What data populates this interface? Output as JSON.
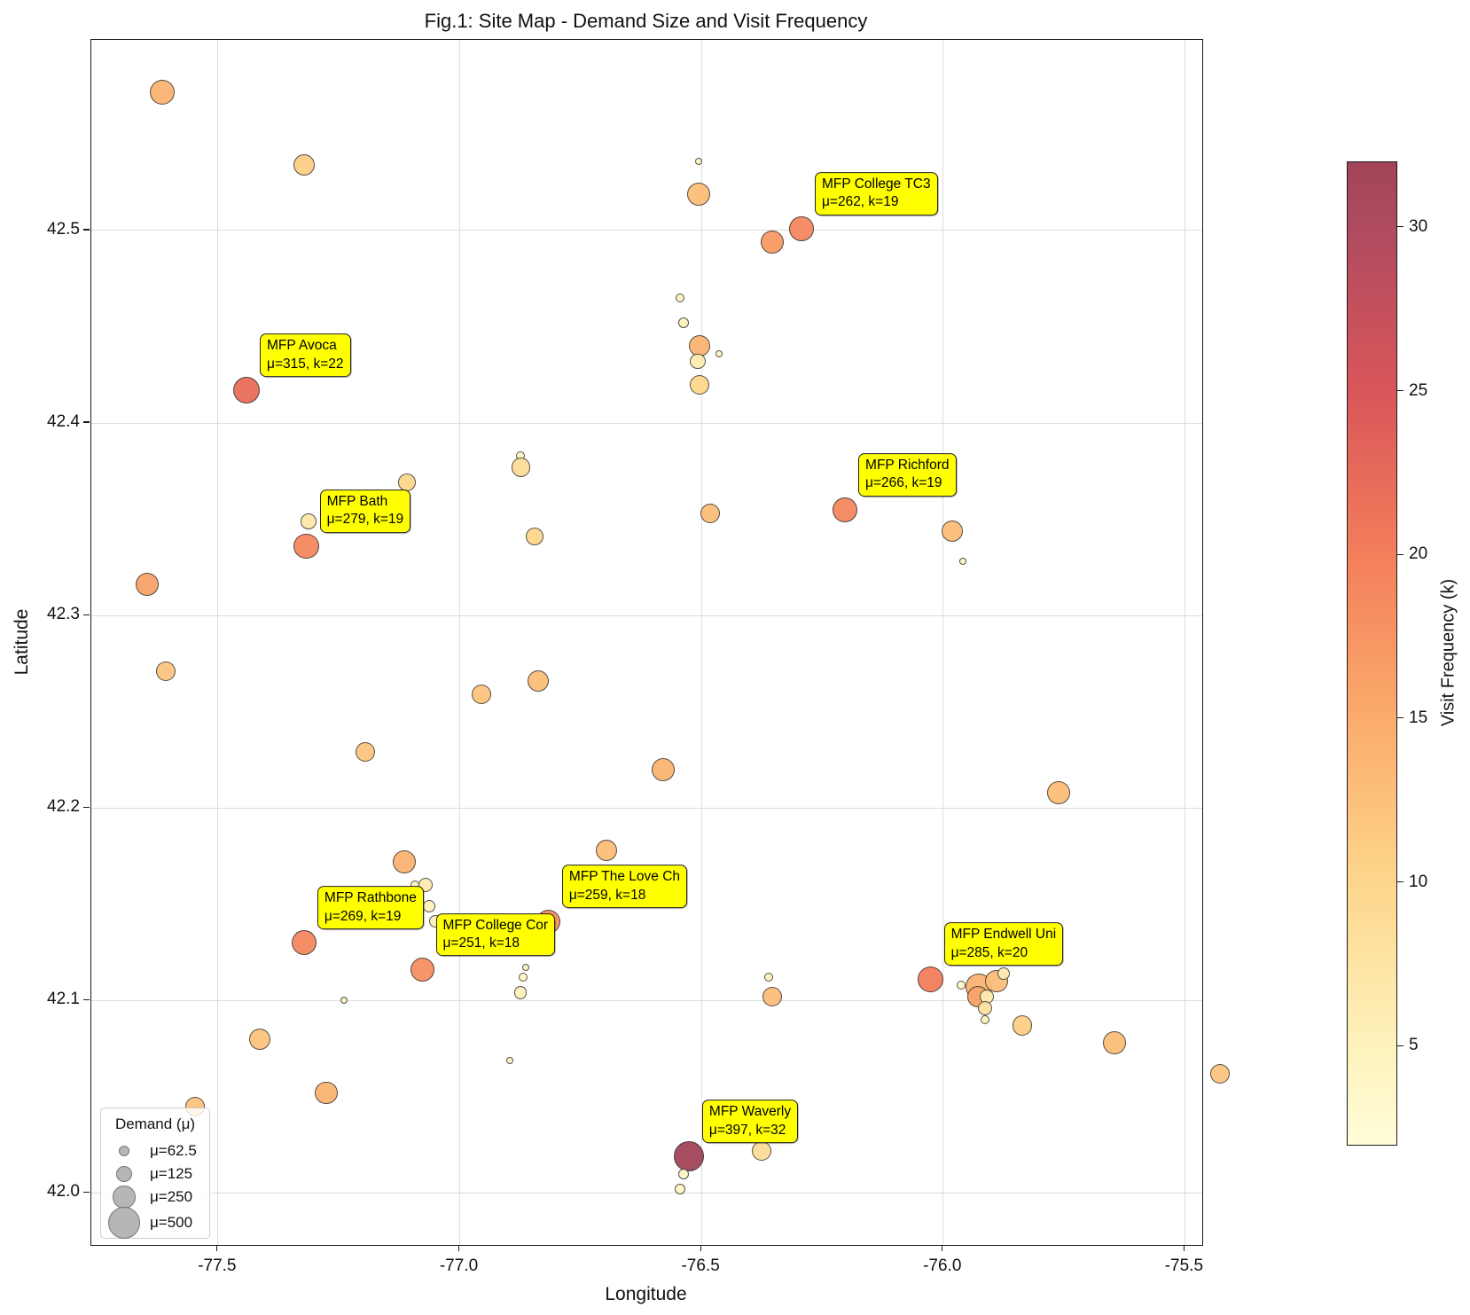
{
  "title": "Fig.1: Site Map - Demand Size and Visit Frequency",
  "axes": {
    "xlabel": "Longitude",
    "ylabel": "Latitude",
    "xlim": [
      -77.762,
      -75.464
    ],
    "ylim": [
      41.973,
      42.599
    ],
    "x_ticks": [
      {
        "value": -77.5,
        "label": "-77.5"
      },
      {
        "value": -77.0,
        "label": "-77.0"
      },
      {
        "value": -76.5,
        "label": "-76.5"
      },
      {
        "value": -76.0,
        "label": "-76.0"
      },
      {
        "value": -75.5,
        "label": "-75.5"
      }
    ],
    "y_ticks": [
      {
        "value": 42.0,
        "label": "42.0"
      },
      {
        "value": 42.1,
        "label": "42.1"
      },
      {
        "value": 42.2,
        "label": "42.2"
      },
      {
        "value": 42.3,
        "label": "42.3"
      },
      {
        "value": 42.4,
        "label": "42.4"
      },
      {
        "value": 42.5,
        "label": "42.5"
      }
    ],
    "grid": true
  },
  "colorbar": {
    "label": "Visit Frequency (k)",
    "vmin": 2,
    "vmax": 32,
    "ticks": [
      {
        "value": 5,
        "label": "5"
      },
      {
        "value": 10,
        "label": "10"
      },
      {
        "value": 15,
        "label": "15"
      },
      {
        "value": 20,
        "label": "20"
      },
      {
        "value": 25,
        "label": "25"
      },
      {
        "value": 30,
        "label": "30"
      }
    ],
    "gradient_stops": [
      {
        "k": 32,
        "color": "#A24459"
      },
      {
        "k": 30,
        "color": "#AF4B60"
      },
      {
        "k": 25,
        "color": "#D95659"
      },
      {
        "k": 20,
        "color": "#F37E5B"
      },
      {
        "k": 15,
        "color": "#FBAC6C"
      },
      {
        "k": 10,
        "color": "#FDD68C"
      },
      {
        "k": 5,
        "color": "#FEF2BC"
      },
      {
        "k": 2,
        "color": "#FFFDD8"
      }
    ]
  },
  "size_legend": {
    "title": "Demand (μ)",
    "entries": [
      {
        "label": "μ=62.5",
        "mu": 62.5
      },
      {
        "label": "μ=125",
        "mu": 125
      },
      {
        "label": "μ=250",
        "mu": 250
      },
      {
        "label": "μ=500",
        "mu": 500
      }
    ]
  },
  "chart_data": {
    "type": "scatter",
    "x_field": "lon",
    "y_field": "lat",
    "size_encoding": "demand mu",
    "color_encoding": "visit frequency k",
    "points": [
      {
        "lon": -77.616,
        "lat": 42.572,
        "mu": 270,
        "k": 14
      },
      {
        "lon": -77.322,
        "lat": 42.534,
        "mu": 200,
        "k": 11
      },
      {
        "lon": -76.505,
        "lat": 42.536,
        "mu": 22,
        "k": 4
      },
      {
        "lon": -76.506,
        "lat": 42.519,
        "mu": 230,
        "k": 13
      },
      {
        "lon": -76.354,
        "lat": 42.494,
        "mu": 230,
        "k": 17
      },
      {
        "lon": -76.293,
        "lat": 42.501,
        "mu": 262,
        "k": 19,
        "annotation": {
          "line1": "MFP College TC3",
          "line2": "μ=262, k=19"
        }
      },
      {
        "lon": -76.544,
        "lat": 42.465,
        "mu": 35,
        "k": 5
      },
      {
        "lon": -76.537,
        "lat": 42.452,
        "mu": 50,
        "k": 5
      },
      {
        "lon": -76.503,
        "lat": 42.44,
        "mu": 200,
        "k": 14
      },
      {
        "lon": -76.463,
        "lat": 42.436,
        "mu": 22,
        "k": 4
      },
      {
        "lon": -76.507,
        "lat": 42.432,
        "mu": 110,
        "k": 6
      },
      {
        "lon": -76.504,
        "lat": 42.42,
        "mu": 170,
        "k": 10
      },
      {
        "lon": -77.441,
        "lat": 42.417,
        "mu": 315,
        "k": 22,
        "annotation": {
          "line1": "MFP Avoca",
          "line2": "μ=315, k=22"
        }
      },
      {
        "lon": -76.875,
        "lat": 42.383,
        "mu": 35,
        "k": 4
      },
      {
        "lon": -76.873,
        "lat": 42.377,
        "mu": 160,
        "k": 9
      },
      {
        "lon": -77.109,
        "lat": 42.369,
        "mu": 140,
        "k": 10
      },
      {
        "lon": -77.313,
        "lat": 42.349,
        "mu": 110,
        "k": 7
      },
      {
        "lon": -77.317,
        "lat": 42.336,
        "mu": 279,
        "k": 19,
        "annotation": {
          "line1": "MFP Bath",
          "line2": "μ=279, k=19"
        }
      },
      {
        "lon": -76.482,
        "lat": 42.353,
        "mu": 170,
        "k": 13
      },
      {
        "lon": -76.203,
        "lat": 42.355,
        "mu": 266,
        "k": 19,
        "annotation": {
          "line1": "MFP Richford",
          "line2": "μ=266, k=19"
        }
      },
      {
        "lon": -75.982,
        "lat": 42.344,
        "mu": 200,
        "k": 13
      },
      {
        "lon": -75.96,
        "lat": 42.328,
        "mu": 22,
        "k": 4
      },
      {
        "lon": -77.647,
        "lat": 42.316,
        "mu": 230,
        "k": 16
      },
      {
        "lon": -76.845,
        "lat": 42.341,
        "mu": 140,
        "k": 10
      },
      {
        "lon": -77.608,
        "lat": 42.271,
        "mu": 170,
        "k": 12
      },
      {
        "lon": -76.838,
        "lat": 42.266,
        "mu": 200,
        "k": 13
      },
      {
        "lon": -76.955,
        "lat": 42.259,
        "mu": 170,
        "k": 12
      },
      {
        "lon": -77.196,
        "lat": 42.229,
        "mu": 170,
        "k": 12
      },
      {
        "lon": -76.579,
        "lat": 42.22,
        "mu": 230,
        "k": 14
      },
      {
        "lon": -76.697,
        "lat": 42.178,
        "mu": 200,
        "k": 13
      },
      {
        "lon": -77.115,
        "lat": 42.172,
        "mu": 230,
        "k": 14
      },
      {
        "lon": -77.093,
        "lat": 42.16,
        "mu": 35,
        "k": 4
      },
      {
        "lon": -77.071,
        "lat": 42.16,
        "mu": 90,
        "k": 6
      },
      {
        "lon": -77.063,
        "lat": 42.149,
        "mu": 70,
        "k": 5
      },
      {
        "lon": -77.051,
        "lat": 42.141,
        "mu": 70,
        "k": 5
      },
      {
        "lon": -76.816,
        "lat": 42.141,
        "mu": 259,
        "k": 18,
        "annotation": {
          "line1": "MFP The Love Ch",
          "line2": "μ=259, k=18"
        }
      },
      {
        "lon": -77.322,
        "lat": 42.13,
        "mu": 269,
        "k": 19,
        "annotation": {
          "line1": "MFP Rathbone",
          "line2": "μ=269, k=19"
        }
      },
      {
        "lon": -77.077,
        "lat": 42.116,
        "mu": 251,
        "k": 18,
        "annotation": {
          "line1": "MFP College Cor",
          "line2": "μ=251, k=18"
        }
      },
      {
        "lon": -77.24,
        "lat": 42.1,
        "mu": 22,
        "k": 5
      },
      {
        "lon": -76.361,
        "lat": 42.112,
        "mu": 35,
        "k": 5
      },
      {
        "lon": -76.354,
        "lat": 42.102,
        "mu": 170,
        "k": 13
      },
      {
        "lon": -76.026,
        "lat": 42.111,
        "mu": 285,
        "k": 20,
        "annotation": {
          "line1": "MFP Endwell Uni",
          "line2": "μ=285, k=20"
        }
      },
      {
        "lon": -75.963,
        "lat": 42.108,
        "mu": 35,
        "k": 4
      },
      {
        "lon": -75.926,
        "lat": 42.107,
        "mu": 300,
        "k": 14
      },
      {
        "lon": -75.928,
        "lat": 42.102,
        "mu": 200,
        "k": 16
      },
      {
        "lon": -75.89,
        "lat": 42.11,
        "mu": 230,
        "k": 13
      },
      {
        "lon": -75.875,
        "lat": 42.114,
        "mu": 70,
        "k": 6
      },
      {
        "lon": -75.909,
        "lat": 42.102,
        "mu": 90,
        "k": 6
      },
      {
        "lon": -75.913,
        "lat": 42.096,
        "mu": 90,
        "k": 8
      },
      {
        "lon": -75.913,
        "lat": 42.09,
        "mu": 35,
        "k": 5
      },
      {
        "lon": -75.836,
        "lat": 42.087,
        "mu": 170,
        "k": 11
      },
      {
        "lon": -76.864,
        "lat": 42.117,
        "mu": 22,
        "k": 4
      },
      {
        "lon": -76.869,
        "lat": 42.112,
        "mu": 35,
        "k": 4
      },
      {
        "lon": -76.875,
        "lat": 42.104,
        "mu": 70,
        "k": 5
      },
      {
        "lon": -76.897,
        "lat": 42.069,
        "mu": 22,
        "k": 4
      },
      {
        "lon": -77.414,
        "lat": 42.08,
        "mu": 200,
        "k": 12
      },
      {
        "lon": -75.761,
        "lat": 42.208,
        "mu": 230,
        "k": 13
      },
      {
        "lon": -75.646,
        "lat": 42.078,
        "mu": 230,
        "k": 13
      },
      {
        "lon": -75.428,
        "lat": 42.062,
        "mu": 170,
        "k": 12
      },
      {
        "lon": -77.276,
        "lat": 42.052,
        "mu": 230,
        "k": 14
      },
      {
        "lon": -77.548,
        "lat": 42.045,
        "mu": 170,
        "k": 12
      },
      {
        "lon": -76.526,
        "lat": 42.019,
        "mu": 397,
        "k": 32,
        "annotation": {
          "line1": "MFP Waverly",
          "line2": "μ=397, k=32"
        }
      },
      {
        "lon": -76.376,
        "lat": 42.022,
        "mu": 170,
        "k": 9
      },
      {
        "lon": -76.537,
        "lat": 42.01,
        "mu": 50,
        "k": 4
      },
      {
        "lon": -76.545,
        "lat": 42.002,
        "mu": 50,
        "k": 4
      }
    ]
  }
}
